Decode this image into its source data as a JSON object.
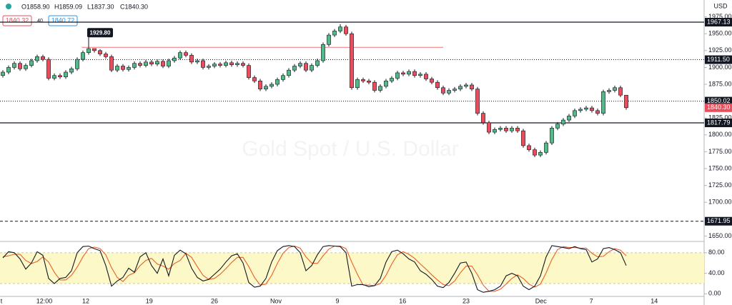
{
  "chart_data": {
    "type": "candlestick",
    "subtitle": "Gold Spot / U.S. Dollar",
    "currency": "USD",
    "ohlc_header": [
      "O1858.90",
      "H1859.09",
      "L1837.30",
      "C1840.30"
    ],
    "bid": "1840.32",
    "spread": "40",
    "ask": "1840.72",
    "up_color": "#53b987",
    "down_color": "#eb4d5c",
    "open": [
      1888,
      1893,
      1900,
      1906,
      1898,
      1903,
      1910,
      1916,
      1912,
      1884,
      1888,
      1886,
      1893,
      1898,
      1912,
      1922,
      1928,
      1925,
      1920,
      1916,
      1896,
      1902,
      1897,
      1900,
      1906,
      1903,
      1908,
      1905,
      1909,
      1902,
      1910,
      1914,
      1922,
      1918,
      1908,
      1910,
      1900,
      1902,
      1905,
      1903,
      1907,
      1904,
      1906,
      1903,
      1885,
      1880,
      1868,
      1872,
      1875,
      1882,
      1888,
      1896,
      1902,
      1906,
      1896,
      1903,
      1910,
      1934,
      1948,
      1954,
      1960,
      1950,
      1870,
      1882,
      1880,
      1878,
      1866,
      1872,
      1880,
      1884,
      1892,
      1890,
      1894,
      1888,
      1890,
      1883,
      1878,
      1870,
      1862,
      1866,
      1868,
      1872,
      1874,
      1868,
      1832,
      1818,
      1804,
      1808,
      1810,
      1806,
      1810,
      1806,
      1784,
      1778,
      1770,
      1774,
      1788,
      1810,
      1816,
      1822,
      1828,
      1836,
      1838,
      1840,
      1836,
      1832,
      1864,
      1866,
      1870,
      1858.9
    ],
    "high": [
      1896,
      1903,
      1909,
      1909,
      1906,
      1913,
      1919,
      1919,
      1915,
      1891,
      1891,
      1896,
      1901,
      1915,
      1925,
      1929.8,
      1928,
      1927,
      1923,
      1919,
      1905,
      1905,
      1903,
      1909,
      1909,
      1911,
      1911,
      1912,
      1912,
      1913,
      1917,
      1925,
      1925,
      1921,
      1913,
      1913,
      1905,
      1908,
      1908,
      1910,
      1910,
      1909,
      1909,
      1906,
      1888,
      1883,
      1875,
      1878,
      1885,
      1891,
      1899,
      1905,
      1909,
      1909,
      1906,
      1913,
      1937,
      1951,
      1957,
      1964,
      1963,
      1953,
      1885,
      1885,
      1883,
      1881,
      1875,
      1883,
      1887,
      1895,
      1895,
      1897,
      1897,
      1893,
      1893,
      1886,
      1881,
      1873,
      1869,
      1871,
      1875,
      1877,
      1877,
      1871,
      1835,
      1821,
      1811,
      1813,
      1813,
      1813,
      1813,
      1809,
      1787,
      1781,
      1777,
      1791,
      1813,
      1819,
      1825,
      1831,
      1839,
      1841,
      1843,
      1843,
      1839,
      1867,
      1869,
      1873,
      1873,
      1859.09
    ],
    "low": [
      1885,
      1890,
      1897,
      1895,
      1895,
      1900,
      1907,
      1909,
      1881,
      1881,
      1883,
      1883,
      1890,
      1895,
      1909,
      1919,
      1922,
      1917,
      1913,
      1893,
      1893,
      1894,
      1894,
      1897,
      1900,
      1900,
      1902,
      1902,
      1899,
      1899,
      1907,
      1911,
      1915,
      1905,
      1905,
      1897,
      1897,
      1899,
      1900,
      1900,
      1901,
      1901,
      1900,
      1882,
      1877,
      1865,
      1865,
      1869,
      1872,
      1879,
      1885,
      1893,
      1899,
      1893,
      1893,
      1900,
      1907,
      1931,
      1945,
      1951,
      1947,
      1867,
      1867,
      1877,
      1875,
      1863,
      1863,
      1869,
      1877,
      1881,
      1887,
      1887,
      1885,
      1885,
      1880,
      1875,
      1867,
      1859,
      1859,
      1863,
      1865,
      1869,
      1865,
      1829,
      1815,
      1801,
      1801,
      1805,
      1803,
      1803,
      1803,
      1781,
      1775,
      1767,
      1767,
      1771,
      1785,
      1807,
      1813,
      1819,
      1825,
      1833,
      1835,
      1833,
      1829,
      1829,
      1861,
      1863,
      1855.9,
      1837.3
    ],
    "close": [
      1893,
      1900,
      1906,
      1898,
      1903,
      1910,
      1916,
      1912,
      1884,
      1888,
      1886,
      1893,
      1898,
      1912,
      1922,
      1928,
      1925,
      1920,
      1916,
      1896,
      1902,
      1897,
      1900,
      1906,
      1903,
      1908,
      1905,
      1909,
      1902,
      1910,
      1914,
      1922,
      1918,
      1908,
      1910,
      1900,
      1902,
      1905,
      1903,
      1907,
      1904,
      1906,
      1903,
      1885,
      1880,
      1868,
      1872,
      1875,
      1882,
      1888,
      1896,
      1902,
      1906,
      1896,
      1903,
      1910,
      1934,
      1948,
      1954,
      1960,
      1950,
      1870,
      1882,
      1880,
      1878,
      1866,
      1872,
      1880,
      1884,
      1892,
      1890,
      1894,
      1888,
      1890,
      1883,
      1878,
      1870,
      1862,
      1866,
      1868,
      1872,
      1874,
      1868,
      1832,
      1818,
      1804,
      1808,
      1810,
      1806,
      1810,
      1806,
      1784,
      1778,
      1770,
      1774,
      1788,
      1810,
      1816,
      1822,
      1828,
      1836,
      1838,
      1840,
      1836,
      1832,
      1864,
      1866,
      1870,
      1858.9,
      1840.3
    ],
    "xlim": [
      -0.5,
      122.625
    ],
    "xticks": [
      {
        "value": -0.25,
        "label": "t"
      },
      {
        "value": 7.25,
        "label": "12:00"
      },
      {
        "value": 14.5,
        "label": "12"
      },
      {
        "value": 25.6,
        "label": "19"
      },
      {
        "value": 37,
        "label": "26"
      },
      {
        "value": 47.75,
        "label": "Nov"
      },
      {
        "value": 58.5,
        "label": "9"
      },
      {
        "value": 69.9,
        "label": "16"
      },
      {
        "value": 81,
        "label": "23"
      },
      {
        "value": 94.1,
        "label": "Dec"
      },
      {
        "value": 102.9,
        "label": "7"
      },
      {
        "value": 113.9,
        "label": "14"
      }
    ],
    "ylim": [
      1642,
      2000
    ],
    "yticks": [
      {
        "value": 1975,
        "label": "1975.00"
      },
      {
        "value": 1950,
        "label": "1950.00"
      },
      {
        "value": 1925,
        "label": "1925.00"
      },
      {
        "value": 1900,
        "label": "1900.00"
      },
      {
        "value": 1875,
        "label": "1875.00"
      },
      {
        "value": 1825,
        "label": "1825.00"
      },
      {
        "value": 1800,
        "label": "1800.00"
      },
      {
        "value": 1775,
        "label": "1775.00"
      },
      {
        "value": 1750,
        "label": "1750.00"
      },
      {
        "value": 1725,
        "label": "1725.00"
      },
      {
        "value": 1700,
        "label": "1700.00"
      },
      {
        "value": 1650,
        "label": "1650.00"
      }
    ],
    "levels": [
      {
        "value": 1967.13,
        "label": "1967.13",
        "style": "solid"
      },
      {
        "value": 1911.5,
        "label": "1911.50",
        "style": "dotted"
      },
      {
        "value": 1850.02,
        "label": "1850.02",
        "style": "dotted"
      },
      {
        "value": 1817.79,
        "label": "1817.79",
        "style": "solid"
      },
      {
        "value": 1671.95,
        "label": "1671.95",
        "style": "dashed"
      }
    ],
    "current_price": {
      "value": 1840.3,
      "label": "1840.30"
    },
    "annotation": {
      "value": 1929.8,
      "label": "1929.80",
      "line_color": "#f07575"
    },
    "oscillator": {
      "ylim": [
        -12,
        102
      ],
      "yticks": [
        {
          "value": 80,
          "label": "80.00"
        },
        {
          "value": 40,
          "label": "40.00"
        },
        {
          "value": 0,
          "label": "0.00"
        }
      ],
      "band": [
        20,
        80
      ],
      "band_color": "#fdf8c8",
      "k_color": "#131722",
      "d_color": "#e8602c",
      "k": [
        70,
        82,
        80,
        68,
        48,
        60,
        82,
        75,
        30,
        20,
        30,
        32,
        45,
        80,
        92,
        93,
        88,
        84,
        55,
        15,
        25,
        32,
        50,
        42,
        72,
        80,
        55,
        40,
        68,
        35,
        75,
        85,
        78,
        50,
        32,
        25,
        28,
        38,
        48,
        62,
        74,
        78,
        60,
        22,
        13,
        15,
        30,
        62,
        84,
        92,
        94,
        92,
        80,
        45,
        55,
        76,
        92,
        94,
        93,
        92,
        80,
        15,
        18,
        18,
        14,
        16,
        30,
        62,
        82,
        85,
        78,
        68,
        62,
        45,
        38,
        28,
        15,
        12,
        22,
        40,
        60,
        62,
        40,
        8,
        3,
        5,
        8,
        15,
        35,
        40,
        35,
        15,
        8,
        15,
        35,
        72,
        94,
        92,
        90,
        88,
        92,
        88,
        86,
        62,
        68,
        88,
        90,
        86,
        80,
        55
      ],
      "d": [
        72,
        74,
        77,
        77,
        65,
        59,
        63,
        72,
        62,
        42,
        27,
        27,
        36,
        52,
        72,
        88,
        91,
        88,
        76,
        51,
        32,
        24,
        36,
        41,
        55,
        65,
        69,
        58,
        54,
        48,
        59,
        65,
        79,
        71,
        53,
        36,
        28,
        30,
        38,
        49,
        61,
        71,
        71,
        53,
        32,
        17,
        19,
        36,
        59,
        79,
        90,
        93,
        89,
        72,
        60,
        59,
        74,
        87,
        93,
        93,
        88,
        62,
        38,
        17,
        17,
        16,
        20,
        36,
        58,
        76,
        82,
        77,
        69,
        58,
        48,
        37,
        27,
        18,
        16,
        25,
        41,
        54,
        54,
        37,
        17,
        5,
        5,
        9,
        19,
        30,
        37,
        30,
        19,
        13,
        19,
        41,
        67,
        86,
        92,
        90,
        90,
        89,
        89,
        79,
        72,
        73,
        82,
        88,
        85,
        74
      ]
    }
  }
}
